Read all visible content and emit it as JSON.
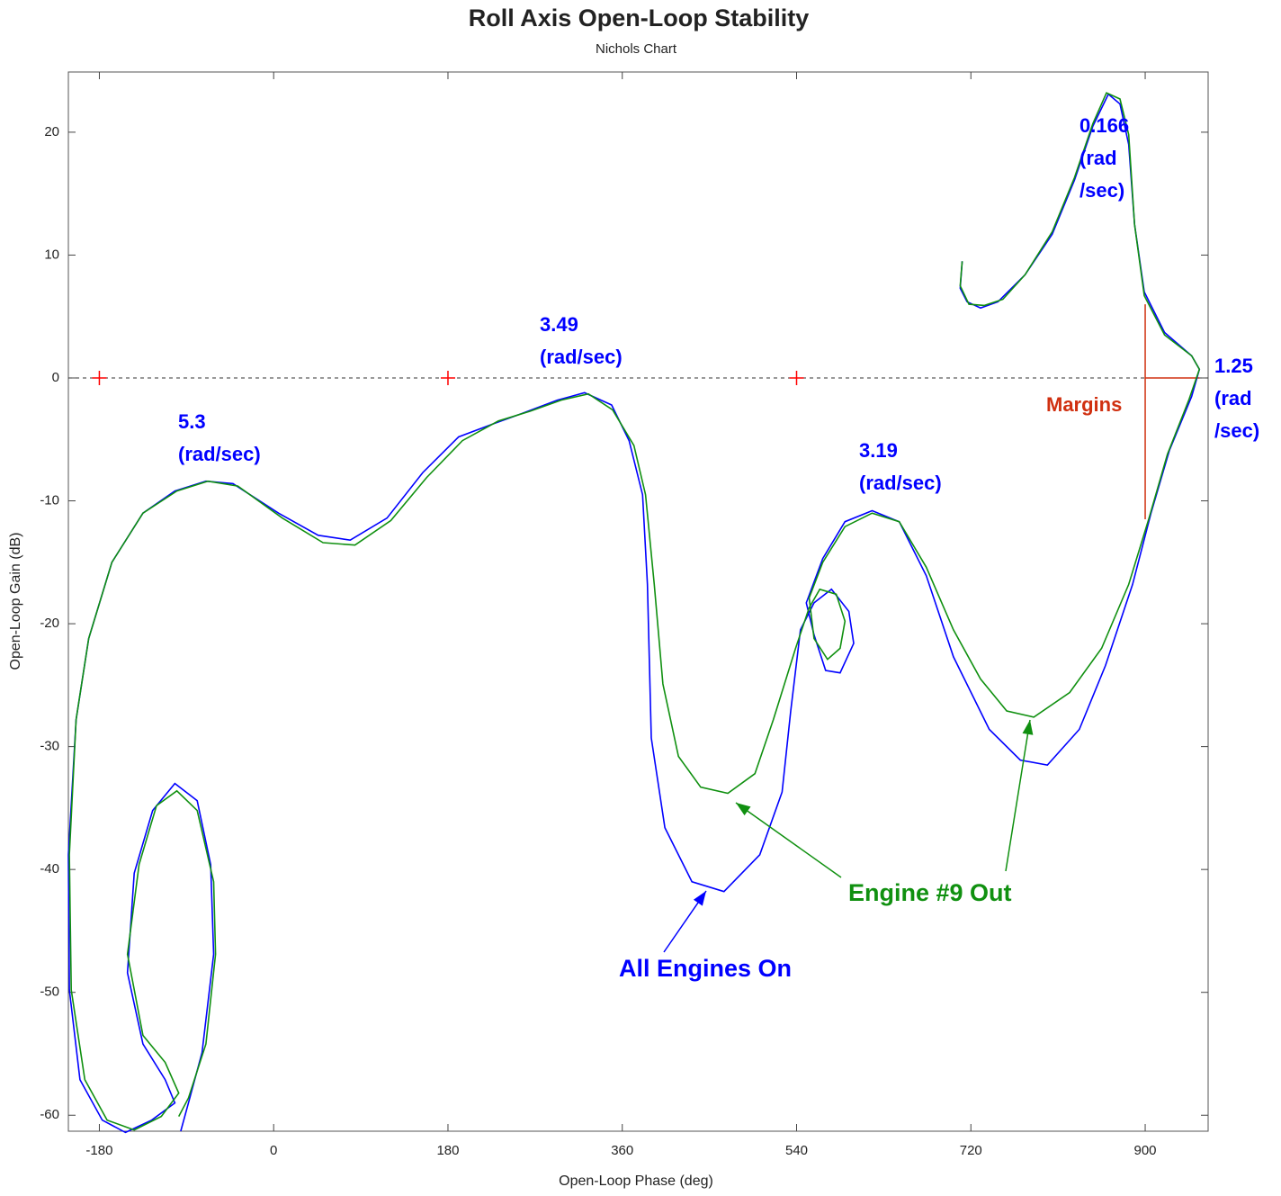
{
  "chart_data": {
    "type": "line",
    "title": "Roll Axis Open-Loop Stability",
    "subtitle": "Nichols Chart",
    "x_label": "Open-Loop Phase (deg)",
    "y_label": "Open-Loop Gain (dB)",
    "xlim": [
      -212,
      965
    ],
    "ylim": [
      -61.3,
      24.9
    ],
    "xticks": [
      -180,
      0,
      180,
      360,
      540,
      720,
      900
    ],
    "yticks": [
      -60,
      -50,
      -40,
      -30,
      -20,
      -10,
      0,
      10,
      20
    ],
    "zero_line": 0,
    "critical_points": {
      "x": [
        -180,
        180,
        540
      ],
      "y": [
        0,
        0,
        0
      ],
      "color": "#ff0000"
    },
    "gain_margin_line": {
      "x": [
        900,
        900
      ],
      "y": [
        6,
        -11.5
      ],
      "color": "#d03010"
    },
    "phase_margin_line": {
      "x": [
        900,
        956
      ],
      "y": [
        0,
        0
      ],
      "color": "#d03010"
    },
    "margin_label": "Margins",
    "annotations": [
      [
        "5.3",
        "(rad/sec)"
      ],
      [
        "3.49",
        "(rad/sec)"
      ],
      [
        "3.19",
        "(rad/sec)"
      ],
      [
        "0.166",
        "(rad",
        "/sec)"
      ],
      [
        "1.25",
        "(rad",
        "/sec)"
      ]
    ],
    "series": [
      {
        "name": "All Engines On",
        "color": "#0000ff",
        "x": [
          711,
          709,
          716,
          730,
          748,
          776,
          804,
          827,
          846,
          862,
          874,
          883,
          889,
          899,
          920,
          948,
          956,
          948,
          925,
          906,
          887,
          859,
          832,
          799,
          771,
          739,
          702,
          674,
          646,
          618,
          590,
          567,
          550,
          558,
          570,
          585,
          599,
          594,
          576,
          558,
          544,
          534,
          525,
          502,
          465,
          432,
          404,
          390,
          386,
          381,
          367,
          349,
          321,
          293,
          256,
          228,
          191,
          154,
          117,
          79,
          46,
          5,
          -42,
          -70,
          -102,
          -135,
          -167,
          -191,
          -204,
          -212,
          -211,
          -200,
          -177,
          -153,
          -126,
          -102,
          -112,
          -135,
          -151,
          -144,
          -125,
          -102,
          -79,
          -65,
          -62,
          -74,
          -88,
          -96
        ],
        "values": [
          9.5,
          7.3,
          6.2,
          5.7,
          6.2,
          8.4,
          11.7,
          16.1,
          20.5,
          23.1,
          22.3,
          19.0,
          12.5,
          7.0,
          3.7,
          1.8,
          0.7,
          -1.5,
          -5.9,
          -11.0,
          -16.8,
          -23.4,
          -28.6,
          -31.5,
          -31.1,
          -28.6,
          -22.7,
          -16.1,
          -11.7,
          -10.8,
          -11.7,
          -14.7,
          -18.3,
          -20.9,
          -23.8,
          -24.0,
          -21.6,
          -19.0,
          -17.2,
          -18.3,
          -20.5,
          -27.1,
          -33.7,
          -38.8,
          -41.8,
          -41.0,
          -36.6,
          -29.3,
          -16.8,
          -9.5,
          -5.1,
          -2.2,
          -1.2,
          -1.8,
          -2.9,
          -3.7,
          -4.8,
          -7.7,
          -11.4,
          -13.2,
          -12.8,
          -11.0,
          -8.6,
          -8.4,
          -9.2,
          -11.0,
          -15.0,
          -21.2,
          -27.8,
          -38.8,
          -49.8,
          -57.1,
          -60.4,
          -61.4,
          -60.4,
          -59.0,
          -57.1,
          -54.2,
          -48.4,
          -40.3,
          -35.2,
          -33.0,
          -34.4,
          -39.6,
          -46.9,
          -54.9,
          -59.0,
          -61.3
        ]
      },
      {
        "name": "Engine #9 Out",
        "color": "#109010",
        "x": [
          711,
          709,
          718,
          734,
          753,
          776,
          804,
          827,
          846,
          860,
          874,
          883,
          889,
          899,
          920,
          948,
          956,
          945,
          923,
          904,
          883,
          855,
          822,
          785,
          757,
          730,
          702,
          674,
          646,
          618,
          590,
          567,
          553,
          558,
          572,
          585,
          590,
          581,
          564,
          553,
          539,
          516,
          497,
          469,
          441,
          418,
          402,
          393,
          384,
          372,
          350,
          325,
          297,
          265,
          232,
          195,
          158,
          121,
          84,
          51,
          9,
          -37,
          -68,
          -100,
          -135,
          -167,
          -191,
          -204,
          -211,
          -209,
          -195,
          -172,
          -144,
          -116,
          -98,
          -112,
          -135,
          -151,
          -139,
          -121,
          -100,
          -79,
          -62,
          -60,
          -70,
          -88,
          -98
        ],
        "values": [
          9.5,
          7.5,
          6.0,
          5.9,
          6.4,
          8.4,
          11.9,
          16.3,
          20.7,
          23.2,
          22.7,
          19.8,
          12.5,
          6.7,
          3.5,
          1.8,
          0.7,
          -1.8,
          -6.2,
          -11.4,
          -16.8,
          -22.0,
          -25.6,
          -27.6,
          -27.1,
          -24.5,
          -20.5,
          -15.4,
          -11.7,
          -11.0,
          -12.1,
          -15.0,
          -17.9,
          -21.2,
          -22.9,
          -22.0,
          -19.8,
          -17.6,
          -17.2,
          -18.7,
          -22.0,
          -27.8,
          -32.2,
          -33.8,
          -33.3,
          -30.8,
          -24.9,
          -16.8,
          -9.5,
          -5.5,
          -2.6,
          -1.3,
          -1.8,
          -2.7,
          -3.5,
          -5.1,
          -8.1,
          -11.6,
          -13.6,
          -13.4,
          -11.4,
          -8.8,
          -8.4,
          -9.2,
          -11.0,
          -15.0,
          -21.2,
          -27.8,
          -38.8,
          -49.8,
          -57.1,
          -60.4,
          -61.2,
          -60.1,
          -58.2,
          -55.7,
          -53.5,
          -46.9,
          -39.6,
          -34.8,
          -33.6,
          -35.2,
          -41.0,
          -46.9,
          -54.2,
          -58.6,
          -60.1
        ]
      }
    ]
  }
}
